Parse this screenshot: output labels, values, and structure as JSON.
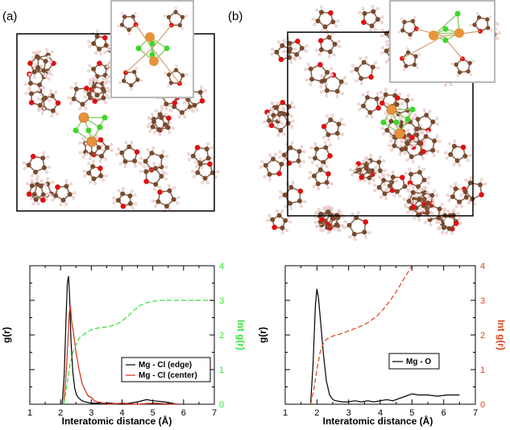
{
  "panel_labels": [
    "(a)",
    "(b)"
  ],
  "colors": {
    "carbon": "#7a4a2e",
    "oxygen": "#e01010",
    "hydrogen": "#f4dcdc",
    "magnesium": "#e8923a",
    "chlorine": "#3ed62a",
    "series_edge": "#000000",
    "series_center": "#d62a10",
    "int_green": "#33e233",
    "int_red": "#e0401a"
  },
  "chart_data": [
    {
      "type": "line",
      "xlabel": "Interatomic distance (Å)",
      "ylabel": "g(r)",
      "y2label": "Int g(r)",
      "xlim": [
        1,
        7
      ],
      "x_ticks": [
        "1",
        "2",
        "3",
        "4",
        "5",
        "6",
        "7"
      ],
      "y2lim": [
        0,
        4
      ],
      "y2_ticks": [
        "0",
        "1",
        "2",
        "3",
        "4"
      ],
      "legend": [
        "Mg - Cl (edge)",
        "Mg - Cl (center)"
      ],
      "legend_position": "lower-right",
      "series": [
        {
          "name": "Mg - Cl (edge)",
          "color": "#000000",
          "style": "solid",
          "axis": "left",
          "x": [
            2.05,
            2.12,
            2.18,
            2.22,
            2.26,
            2.3,
            2.34,
            2.4,
            2.46,
            2.52,
            2.6,
            2.7,
            2.8,
            3.0,
            3.3,
            3.6,
            4.0,
            4.5,
            4.8,
            5.0,
            5.4,
            5.8
          ],
          "y": [
            0,
            0.25,
            0.75,
            1.05,
            1.11,
            0.9,
            0.55,
            0.28,
            0.14,
            0.08,
            0.05,
            0.03,
            0.02,
            0.01,
            0.01,
            0.01,
            0.0,
            0.02,
            0.04,
            0.03,
            0.02,
            0.0
          ]
        },
        {
          "name": "Mg - Cl (center)",
          "color": "#d62a10",
          "style": "solid",
          "axis": "left",
          "x": [
            2.1,
            2.18,
            2.24,
            2.28,
            2.32,
            2.36,
            2.42,
            2.5,
            2.6,
            2.7,
            2.8,
            2.9,
            3.0,
            3.1,
            3.2,
            3.4,
            3.6,
            4.0,
            4.5,
            5.0,
            5.8
          ],
          "y": [
            0,
            0.25,
            0.55,
            0.78,
            0.85,
            0.72,
            0.62,
            0.45,
            0.3,
            0.18,
            0.12,
            0.07,
            0.06,
            0.03,
            0.02,
            0.01,
            0.0,
            0.01,
            0.0,
            0.01,
            0.0
          ]
        },
        {
          "name": "",
          "color": "#33e233",
          "style": "dashed",
          "axis": "right",
          "x": [
            2.1,
            2.2,
            2.3,
            2.4,
            2.5,
            2.6,
            2.8,
            3.0,
            3.2,
            3.4,
            3.6,
            3.8,
            4.0,
            4.2,
            4.4,
            4.6,
            4.8,
            5.0,
            5.2,
            5.5,
            6.0,
            6.5,
            7.0
          ],
          "y": [
            0,
            0.5,
            1.1,
            1.5,
            1.72,
            1.9,
            2.05,
            2.15,
            2.2,
            2.22,
            2.25,
            2.3,
            2.4,
            2.55,
            2.72,
            2.86,
            2.93,
            2.97,
            3.0,
            3.0,
            3.0,
            3.0,
            3.0
          ]
        }
      ]
    },
    {
      "type": "line",
      "xlabel": "Interatomic distance (Å)",
      "ylabel": "g(r)",
      "y2label": "Int g(r)",
      "xlim": [
        1,
        7
      ],
      "x_ticks": [
        "1",
        "2",
        "3",
        "4",
        "5",
        "6",
        "7"
      ],
      "y2lim": [
        0,
        4
      ],
      "y2_ticks": [
        "0",
        "1",
        "2",
        "3",
        "4"
      ],
      "legend": [
        "Mg - O"
      ],
      "legend_position": "middle-right",
      "series": [
        {
          "name": "Mg - O",
          "color": "#000000",
          "style": "solid",
          "axis": "left",
          "x": [
            1.8,
            1.88,
            1.95,
            2.0,
            2.05,
            2.12,
            2.2,
            2.3,
            2.4,
            2.5,
            2.6,
            2.8,
            3.0,
            3.2,
            3.4,
            3.6,
            3.8,
            4.0,
            4.2,
            4.4,
            4.6,
            4.8,
            5.0,
            5.2,
            5.5,
            5.8,
            6.1,
            6.5
          ],
          "y": [
            0,
            0.35,
            0.85,
            1.0,
            0.92,
            0.7,
            0.45,
            0.2,
            0.08,
            0.04,
            0.03,
            0.02,
            0.02,
            0.03,
            0.02,
            0.03,
            0.02,
            0.03,
            0.04,
            0.03,
            0.05,
            0.07,
            0.09,
            0.08,
            0.08,
            0.07,
            0.08,
            0.08
          ]
        },
        {
          "name": "",
          "color": "#e0401a",
          "style": "dashed",
          "axis": "right",
          "x": [
            1.8,
            1.9,
            2.0,
            2.1,
            2.2,
            2.3,
            2.5,
            2.8,
            3.0,
            3.3,
            3.6,
            3.9,
            4.1,
            4.3,
            4.5,
            4.7,
            4.9,
            5.0
          ],
          "y": [
            0,
            0.4,
            1.0,
            1.5,
            1.75,
            1.88,
            1.97,
            2.05,
            2.12,
            2.22,
            2.35,
            2.55,
            2.75,
            2.98,
            3.25,
            3.55,
            3.85,
            4.0
          ]
        }
      ]
    }
  ]
}
